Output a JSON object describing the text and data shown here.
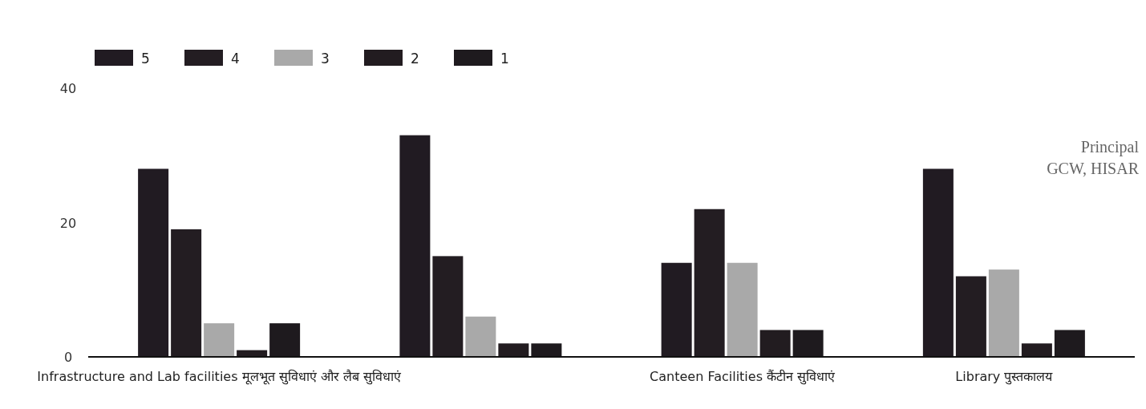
{
  "chart_data": {
    "type": "bar",
    "categories": [
      "Infrastructure and Lab facilities मूलभूत सुविधाएं और लैब सुविधाएं",
      null,
      "Canteen Facilities कैंटीन सुविधाएं",
      "Library पुस्तकालय"
    ],
    "series": [
      {
        "name": "5",
        "color": "#211b22",
        "values": [
          28,
          33,
          14,
          28
        ]
      },
      {
        "name": "4",
        "color": "#231d22",
        "values": [
          19,
          15,
          22,
          12
        ]
      },
      {
        "name": "3",
        "color": "#a9a9a9",
        "values": [
          5,
          6,
          14,
          13
        ]
      },
      {
        "name": "2",
        "color": "#221c20",
        "values": [
          1,
          2,
          4,
          2
        ]
      },
      {
        "name": "1",
        "color": "#1e1a1e",
        "values": [
          5,
          2,
          4,
          4
        ]
      }
    ],
    "ylim": [
      0,
      40
    ],
    "yticks": [
      0,
      20,
      40
    ],
    "grid": false,
    "legend": "top left",
    "annotations": [
      "Principal",
      "GCW, HISAR"
    ]
  }
}
